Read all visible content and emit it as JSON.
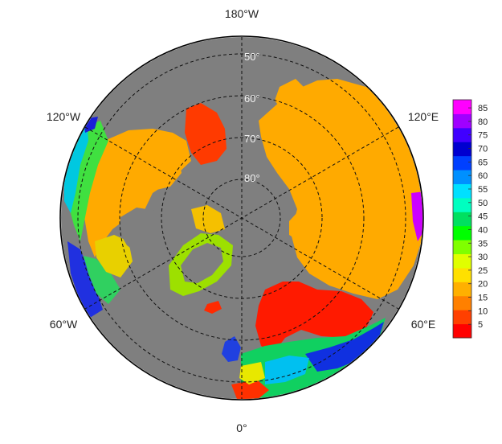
{
  "map": {
    "projection": "north-polar-stereographic",
    "ocean_color": "#7f7f7f",
    "land_nodata_color": "#7f7f7f",
    "longitude_labels": {
      "top": "180°W",
      "bottom": "0°",
      "upper_left": "120°W",
      "lower_left": "60°W",
      "upper_right": "120°E",
      "lower_right": "60°E"
    },
    "latitude_labels": [
      "50°",
      "60°",
      "70°",
      "80°"
    ],
    "gridlines": "dashed"
  },
  "colorbar": {
    "ticks": [
      "85",
      "80",
      "75",
      "70",
      "65",
      "60",
      "55",
      "50",
      "45",
      "40",
      "35",
      "30",
      "25",
      "20",
      "15",
      "10",
      "5"
    ],
    "min": 0,
    "max": 88,
    "colors": [
      "#ff0000",
      "#ff4000",
      "#ff8000",
      "#ffb000",
      "#ffe000",
      "#e0ff00",
      "#80ff00",
      "#00ff00",
      "#00e060",
      "#00ffc0",
      "#00e0ff",
      "#0090ff",
      "#0040ff",
      "#0000d0",
      "#4000ff",
      "#a000ff",
      "#ff00ff"
    ]
  }
}
